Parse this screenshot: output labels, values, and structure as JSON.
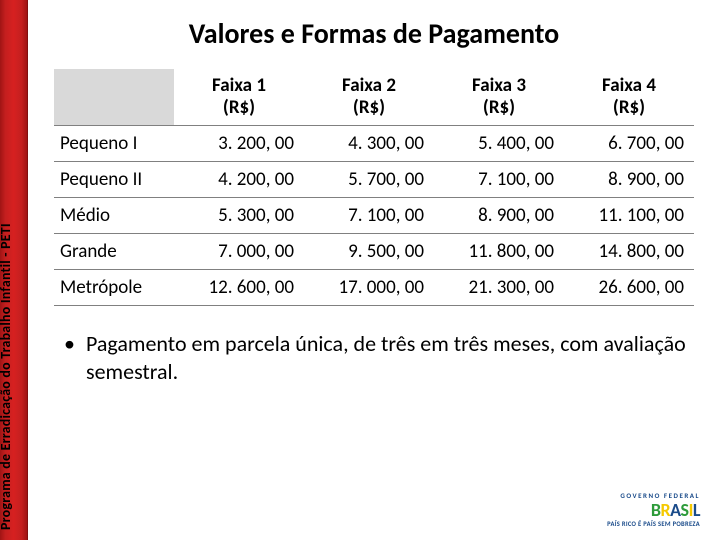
{
  "sidebar_label": "Programa de Erradicação do Trabalho Infantil - PETI",
  "title": "Valores e Formas de Pagamento",
  "table": {
    "columns": [
      {
        "line1": "Faixa 1",
        "line2": "(R$)"
      },
      {
        "line1": "Faixa 2",
        "line2": "(R$)"
      },
      {
        "line1": "Faixa 3",
        "line2": "(R$)"
      },
      {
        "line1": "Faixa 4",
        "line2": "(R$)"
      }
    ],
    "rows": [
      {
        "label": "Pequeno I",
        "values": [
          "3. 200, 00",
          "4. 300, 00",
          "5. 400, 00",
          "6. 700, 00"
        ]
      },
      {
        "label": "Pequeno II",
        "values": [
          "4. 200, 00",
          "5. 700, 00",
          "7. 100, 00",
          "8. 900, 00"
        ]
      },
      {
        "label": "Médio",
        "values": [
          "5. 300, 00",
          "7. 100, 00",
          "8. 900, 00",
          "11. 100, 00"
        ]
      },
      {
        "label": "Grande",
        "values": [
          "7. 000, 00",
          "9. 500, 00",
          "11. 800, 00",
          "14. 800, 00"
        ]
      },
      {
        "label": "Metrópole",
        "values": [
          "12. 600, 00",
          "17. 000, 00",
          "21. 300, 00",
          "26. 600, 00"
        ]
      }
    ]
  },
  "bullet_text": "Pagamento em parcela única, de três em três meses,  com avaliação semestral.",
  "logo": {
    "gov": "GOVERNO FEDERAL",
    "brasil": "BRASIL",
    "tagline": "PAÍS RICO É PAÍS SEM POBREZA"
  }
}
